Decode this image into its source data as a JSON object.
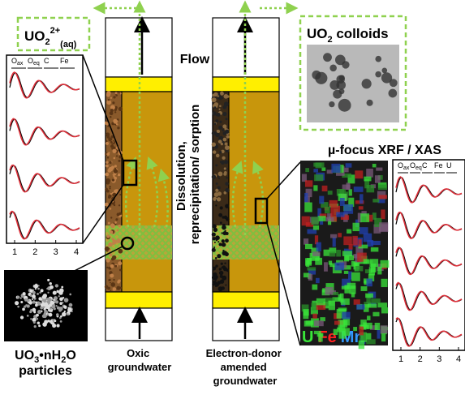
{
  "labels": {
    "uranyl": {
      "main": "UO",
      "sub": "2",
      "sup": "2+",
      "subscript": "(aq)"
    },
    "flow": "Flow",
    "colloids": {
      "main": "UO",
      "sub": "2",
      "rest": " colloids"
    },
    "xrf": "µ-focus XRF / XAS",
    "process": [
      "Dissolution,",
      "reprecipitation/ sorption"
    ],
    "particles": {
      "a": "UO",
      "b": "3",
      "c": "•nH",
      "d": "2",
      "e": "O",
      "line2": "particles"
    },
    "oxic": [
      "Oxic",
      "groundwater"
    ],
    "amended": [
      "Electron-donor",
      "amended",
      "groundwater"
    ],
    "elements": [
      "U",
      "Fe",
      "Mn"
    ]
  },
  "left_plot": {
    "shells": [
      {
        "main": "O",
        "sub": "ax"
      },
      {
        "main": "O",
        "sub": "eq"
      },
      {
        "main": "C"
      },
      {
        "main": "Fe"
      }
    ],
    "ticks": [
      1,
      2,
      3,
      4
    ]
  },
  "right_plot": {
    "shells": [
      {
        "main": "O",
        "sub": "ax"
      },
      {
        "main": "O",
        "sub": "eq"
      },
      {
        "main": "C"
      },
      {
        "main": "Fe"
      },
      {
        "main": "U"
      }
    ],
    "ticks": [
      1,
      2,
      3,
      4
    ]
  }
}
